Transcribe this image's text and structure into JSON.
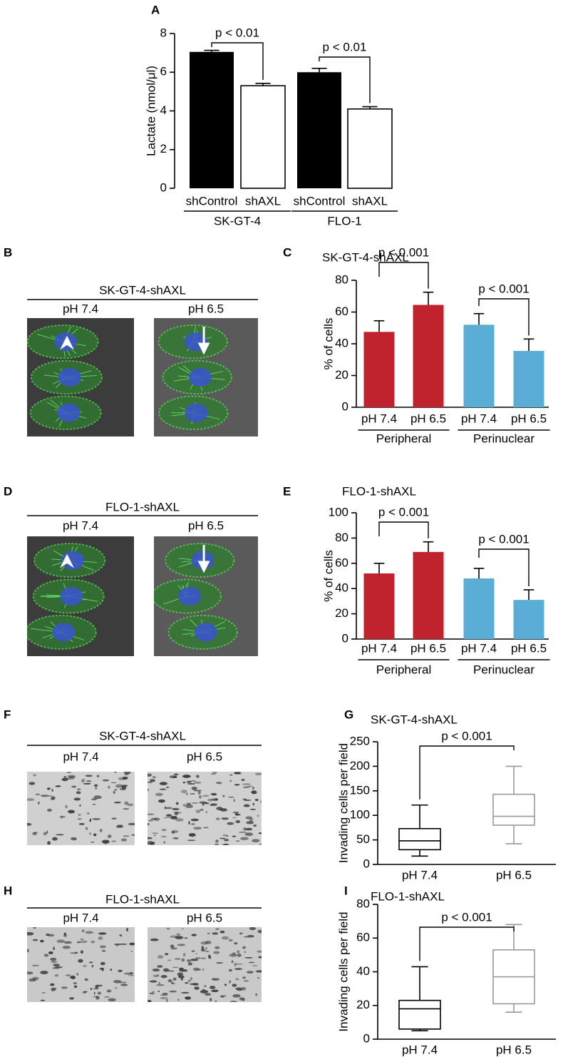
{
  "chart_data": [
    {
      "type": "bar",
      "panel_label": "A",
      "ylabel": "Lactate (nmol/μl)",
      "categories": [
        "shControl",
        "shAXL",
        "shControl",
        "shAXL"
      ],
      "groups": [
        "SK-GT-4",
        "FLO-1"
      ],
      "values": [
        7.05,
        5.3,
        6.0,
        4.1
      ],
      "errors": [
        0.08,
        0.12,
        0.2,
        0.12
      ],
      "colors": [
        "#000000",
        "#ffffff",
        "#000000",
        "#ffffff"
      ],
      "ylim": [
        0,
        8
      ],
      "yticks": [
        0,
        2,
        4,
        6,
        8
      ],
      "annotations": [
        "p < 0.01",
        "p < 0.01"
      ]
    },
    {
      "type": "bar",
      "panel_label": "C",
      "title": "SK-GT-4-shAXL",
      "ylabel": "% of cells",
      "categories": [
        "pH 7.4",
        "pH 6.5",
        "pH 7.4",
        "pH 6.5"
      ],
      "groups": [
        "Peripheral",
        "Perinuclear"
      ],
      "values": [
        47.5,
        64.5,
        52,
        35.5
      ],
      "errors": [
        7,
        8,
        7,
        7.5
      ],
      "colors": [
        "#c0222e",
        "#c0222e",
        "#5aaed6",
        "#5aaed6"
      ],
      "ylim": [
        0,
        80
      ],
      "yticks": [
        0,
        20,
        40,
        60,
        80
      ],
      "annotations": [
        "p < 0.001",
        "p < 0.001"
      ]
    },
    {
      "type": "bar",
      "panel_label": "E",
      "title": "FLO-1-shAXL",
      "ylabel": "% of cells",
      "categories": [
        "pH 7.4",
        "pH 6.5",
        "pH 7.4",
        "pH 6.5"
      ],
      "groups": [
        "Peripheral",
        "Perinuclear"
      ],
      "values": [
        52,
        69,
        48,
        31
      ],
      "errors": [
        8,
        8,
        8,
        8
      ],
      "colors": [
        "#c0222e",
        "#c0222e",
        "#5aaed6",
        "#5aaed6"
      ],
      "ylim": [
        0,
        100
      ],
      "yticks": [
        0,
        20,
        40,
        60,
        80,
        100
      ],
      "annotations": [
        "p < 0.001",
        "p < 0.001"
      ]
    },
    {
      "type": "box",
      "panel_label": "G",
      "title": "SK-GT-4-shAXL",
      "ylabel": "Invading cells per field",
      "categories": [
        "pH 7.4",
        "pH 6.5"
      ],
      "colors": [
        "#000000",
        "#999999"
      ],
      "boxes": [
        {
          "min": 17,
          "q1": 30,
          "median": 48,
          "q3": 73,
          "max": 121
        },
        {
          "min": 42,
          "q1": 80,
          "median": 98,
          "q3": 143,
          "max": 200
        }
      ],
      "ylim": [
        0,
        250
      ],
      "yticks": [
        0,
        50,
        100,
        150,
        200,
        250
      ],
      "annotations": [
        "p < 0.001"
      ]
    },
    {
      "type": "box",
      "panel_label": "I",
      "title": "FLO-1-shAXL",
      "ylabel": "Invading cells per field",
      "categories": [
        "pH 7.4",
        "pH 6.5"
      ],
      "colors": [
        "#000000",
        "#999999"
      ],
      "boxes": [
        {
          "min": 5,
          "q1": 6,
          "median": 18,
          "q3": 23,
          "max": 43
        },
        {
          "min": 16,
          "q1": 21,
          "median": 37,
          "q3": 53,
          "max": 68
        }
      ],
      "ylim": [
        0,
        80
      ],
      "yticks": [
        0,
        20,
        40,
        60,
        80
      ],
      "annotations": [
        "p < 0.001"
      ]
    }
  ],
  "image_panels": [
    {
      "panel_label": "B",
      "title": "SK-GT-4-shAXL",
      "labels": [
        "pH 7.4",
        "pH 6.5"
      ]
    },
    {
      "panel_label": "D",
      "title": "FLO-1-shAXL",
      "labels": [
        "pH 7.4",
        "pH 6.5"
      ]
    },
    {
      "panel_label": "F",
      "title": "SK-GT-4-shAXL",
      "labels": [
        "pH 7.4",
        "pH 6.5"
      ]
    },
    {
      "panel_label": "H",
      "title": "FLO-1-shAXL",
      "labels": [
        "pH 7.4",
        "pH 6.5"
      ]
    }
  ]
}
